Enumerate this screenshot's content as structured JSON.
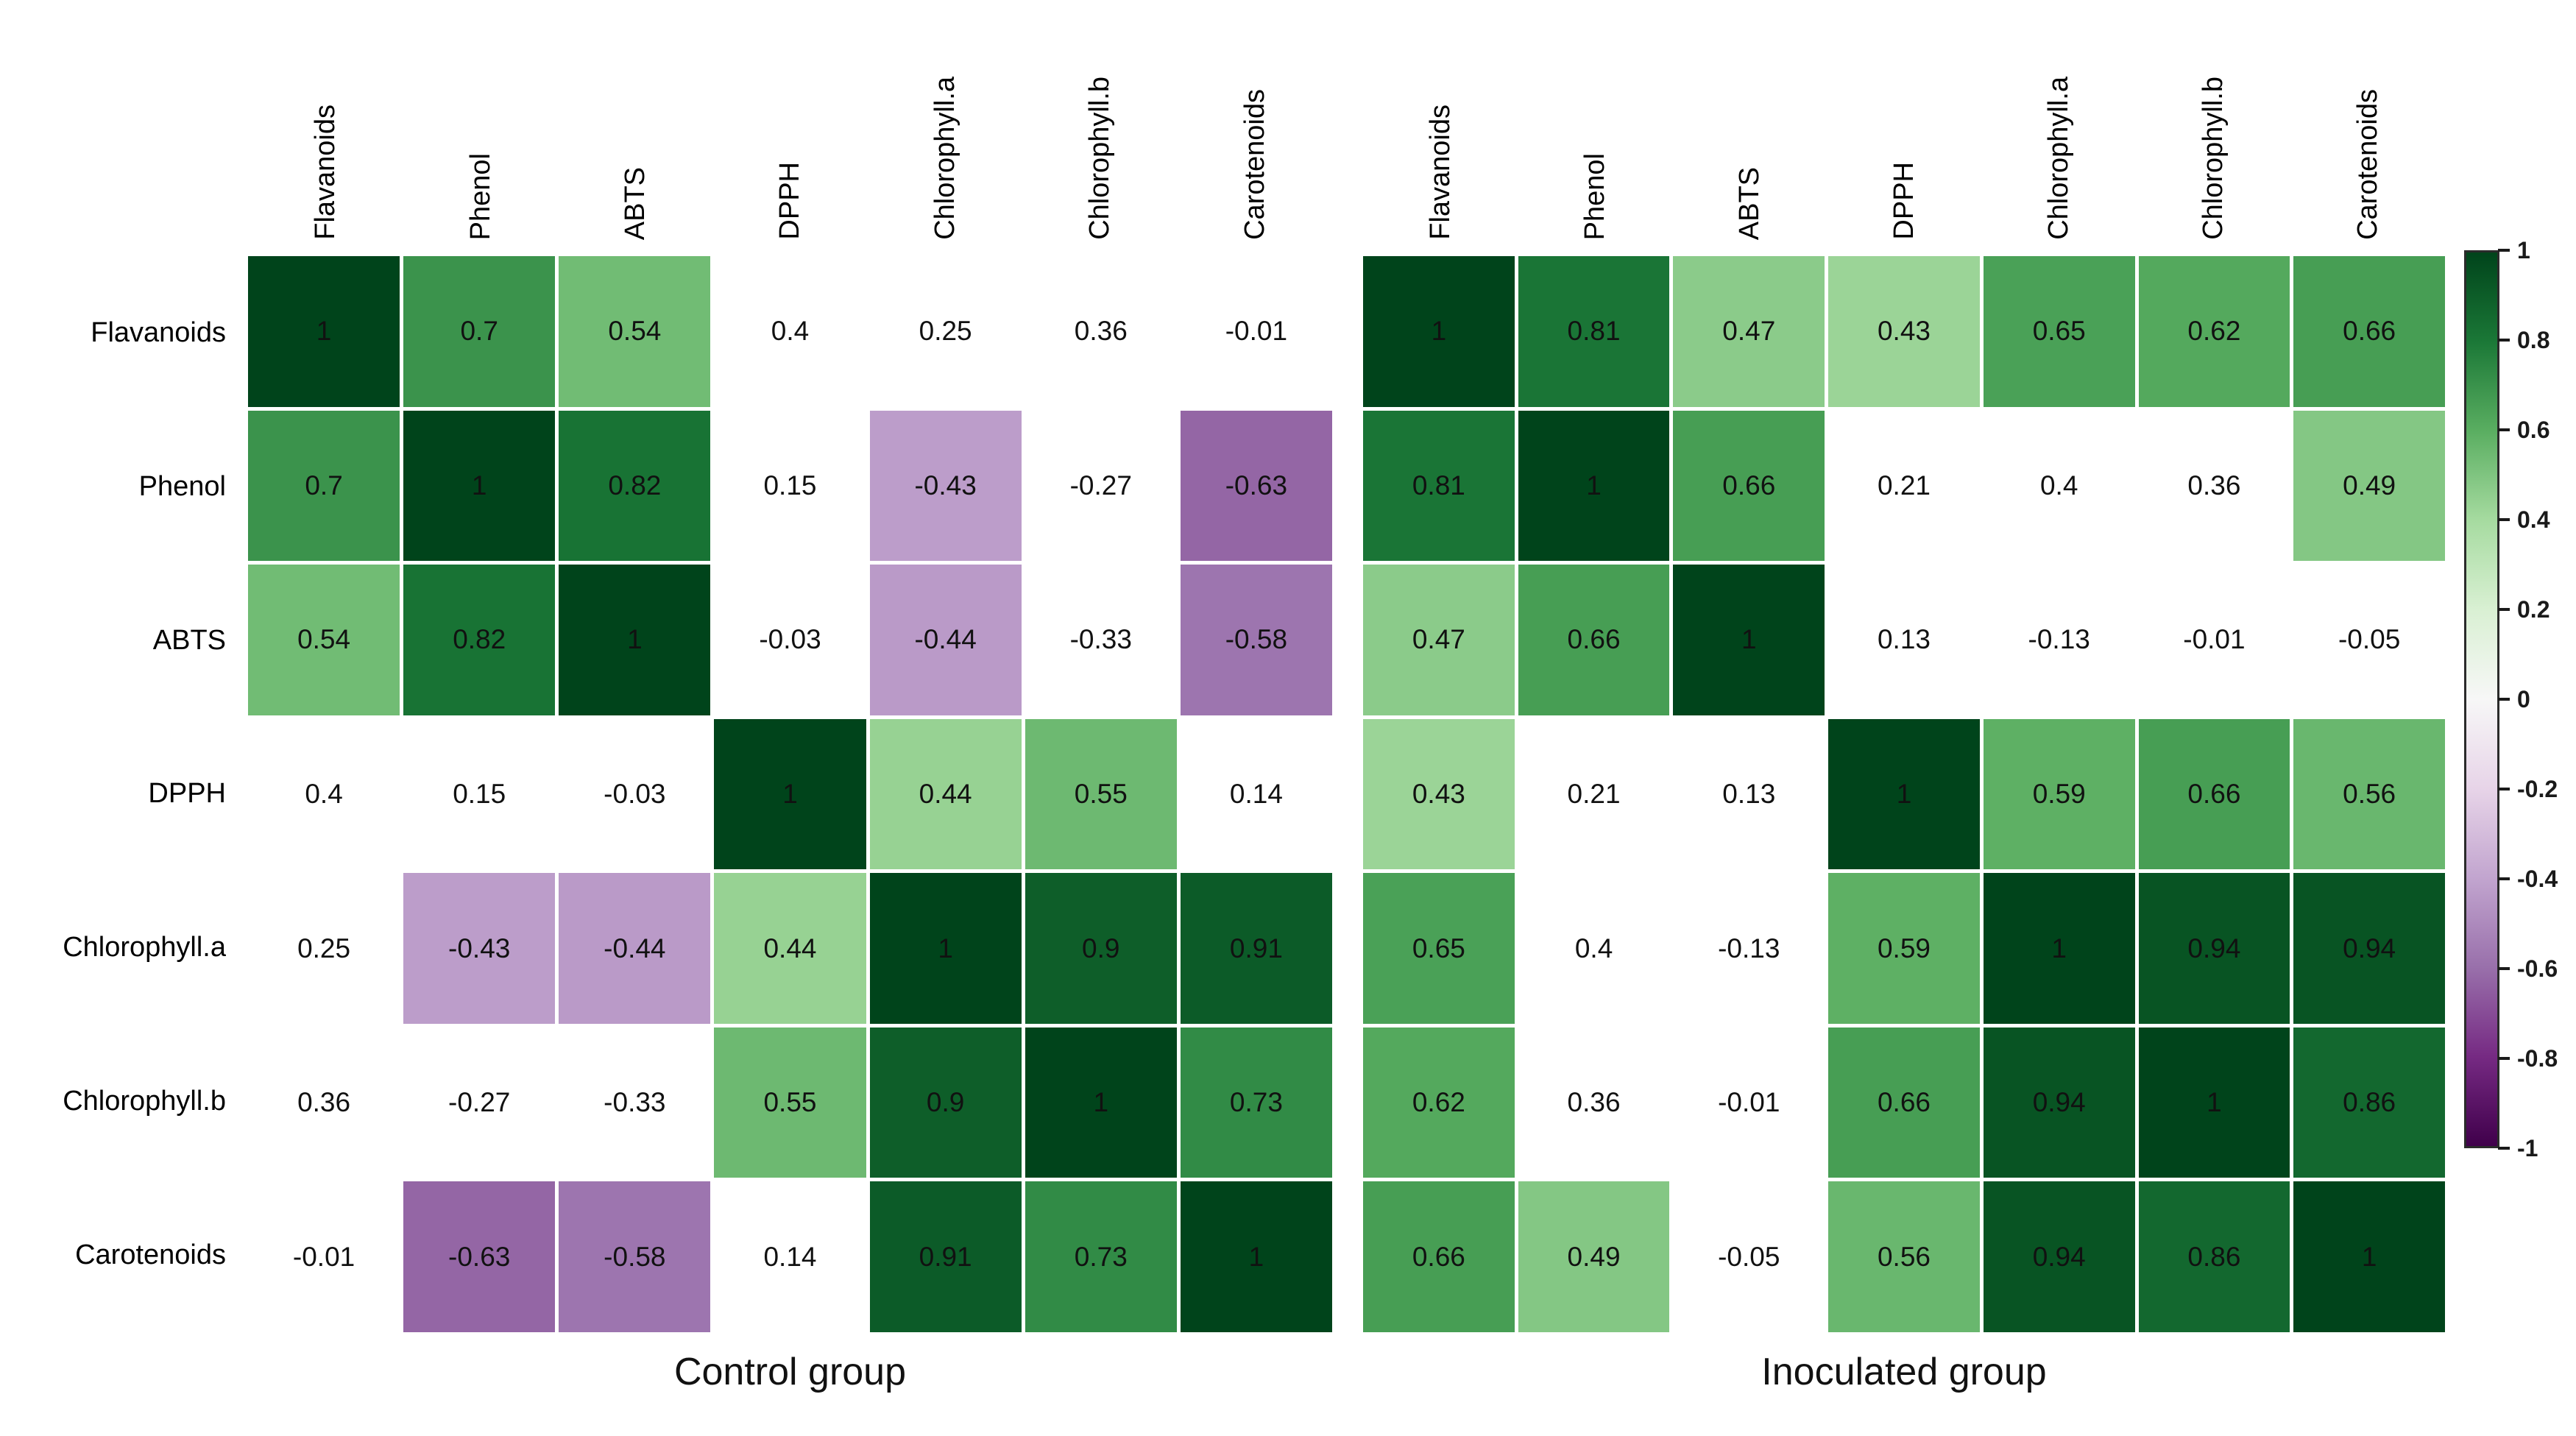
{
  "chart_data": {
    "type": "heatmap",
    "description": "Pairwise correlation matrices; white cells show non-significant correlations (value printed, no fill)",
    "variables": [
      "Flavanoids",
      "Phenol",
      "ABTS",
      "DPPH",
      "Chlorophyll.a",
      "Chlorophyll.b",
      "Carotenoids"
    ],
    "panels": [
      {
        "title": "Control group",
        "values": [
          [
            "1",
            "0.7",
            "0.54",
            "0.4",
            "0.25",
            "0.36",
            "-0.01"
          ],
          [
            "0.7",
            "1",
            "0.82",
            "0.15",
            "-0.43",
            "-0.27",
            "-0.63"
          ],
          [
            "0.54",
            "0.82",
            "1",
            "-0.03",
            "-0.44",
            "-0.33",
            "-0.58"
          ],
          [
            "0.4",
            "0.15",
            "-0.03",
            "1",
            "0.44",
            "0.55",
            "0.14"
          ],
          [
            "0.25",
            "-0.43",
            "-0.44",
            "0.44",
            "1",
            "0.9",
            "0.91"
          ],
          [
            "0.36",
            "-0.27",
            "-0.33",
            "0.55",
            "0.9",
            "1",
            "0.73"
          ],
          [
            "-0.01",
            "-0.63",
            "-0.58",
            "0.14",
            "0.91",
            "0.73",
            "1"
          ]
        ],
        "significant": [
          [
            1,
            1,
            1,
            0,
            0,
            0,
            0
          ],
          [
            1,
            1,
            1,
            0,
            1,
            0,
            1
          ],
          [
            1,
            1,
            1,
            0,
            1,
            0,
            1
          ],
          [
            0,
            0,
            0,
            1,
            1,
            1,
            0
          ],
          [
            0,
            1,
            1,
            1,
            1,
            1,
            1
          ],
          [
            0,
            0,
            0,
            1,
            1,
            1,
            1
          ],
          [
            0,
            1,
            1,
            0,
            1,
            1,
            1
          ]
        ]
      },
      {
        "title": "Inoculated group",
        "values": [
          [
            "1",
            "0.81",
            "0.47",
            "0.43",
            "0.65",
            "0.62",
            "0.66"
          ],
          [
            "0.81",
            "1",
            "0.66",
            "0.21",
            "0.4",
            "0.36",
            "0.49"
          ],
          [
            "0.47",
            "0.66",
            "1",
            "0.13",
            "-0.13",
            "-0.01",
            "-0.05"
          ],
          [
            "0.43",
            "0.21",
            "0.13",
            "1",
            "0.59",
            "0.66",
            "0.56"
          ],
          [
            "0.65",
            "0.4",
            "-0.13",
            "0.59",
            "1",
            "0.94",
            "0.94"
          ],
          [
            "0.62",
            "0.36",
            "-0.01",
            "0.66",
            "0.94",
            "1",
            "0.86"
          ],
          [
            "0.66",
            "0.49",
            "-0.05",
            "0.56",
            "0.94",
            "0.86",
            "1"
          ]
        ],
        "significant": [
          [
            1,
            1,
            1,
            1,
            1,
            1,
            1
          ],
          [
            1,
            1,
            1,
            0,
            0,
            0,
            1
          ],
          [
            1,
            1,
            1,
            0,
            0,
            0,
            0
          ],
          [
            1,
            0,
            0,
            1,
            1,
            1,
            1
          ],
          [
            1,
            0,
            0,
            1,
            1,
            1,
            1
          ],
          [
            1,
            0,
            0,
            1,
            1,
            1,
            1
          ],
          [
            1,
            1,
            0,
            1,
            1,
            1,
            1
          ]
        ]
      }
    ],
    "colorbar": {
      "min": -1,
      "max": 1,
      "tick_labels": [
        "1",
        "0.8",
        "0.6",
        "0.4",
        "0.2",
        "0",
        "-0.2",
        "-0.4",
        "-0.6",
        "-0.8",
        "-1"
      ]
    },
    "colors": {
      "non_significant_fill": "#ffffff",
      "cell_text": "#111111",
      "colormap_stops": [
        {
          "v": -1.0,
          "c": "#40004b"
        },
        {
          "v": -0.8,
          "c": "#762a83"
        },
        {
          "v": -0.6,
          "c": "#9970ab"
        },
        {
          "v": -0.4,
          "c": "#c2a5cf"
        },
        {
          "v": -0.2,
          "c": "#e7d4e8"
        },
        {
          "v": 0.0,
          "c": "#f7f7f7"
        },
        {
          "v": 0.2,
          "c": "#d9f0d3"
        },
        {
          "v": 0.4,
          "c": "#a6dba0"
        },
        {
          "v": 0.6,
          "c": "#5aae61"
        },
        {
          "v": 0.8,
          "c": "#1b7837"
        },
        {
          "v": 1.0,
          "c": "#00441b"
        }
      ]
    }
  }
}
